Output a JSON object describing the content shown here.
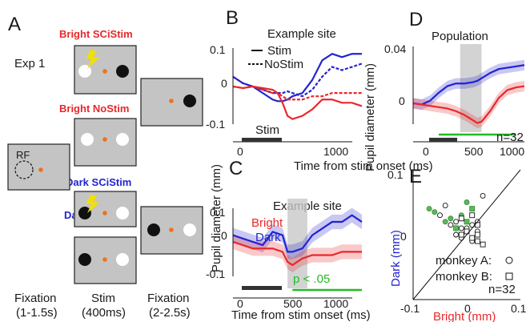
{
  "panel_a": {
    "letter": "A",
    "exp": "Exp 1",
    "rf": "RF",
    "conditions": [
      {
        "label": "Bright SCiStim",
        "color": "#e8282b"
      },
      {
        "label": "Bright NoStim",
        "color": "#e8282b"
      },
      {
        "label": "Dark SCiStim",
        "color": "#2323d0"
      },
      {
        "label": "Dark NoStim",
        "color": "#2323d0"
      }
    ],
    "phases": [
      {
        "line1": "Fixation",
        "line2": "(1-1.5s)"
      },
      {
        "line1": "Stim",
        "line2": "(400ms)"
      },
      {
        "line1": "Fixation",
        "line2": "(2-2.5s)"
      }
    ]
  },
  "panel_b": {
    "letter": "B",
    "title": "Example site",
    "legend": [
      "Stim",
      "NoStim"
    ],
    "bar_label": "Stim",
    "yticks": [
      "0.1",
      "0",
      "-0.1"
    ],
    "xticks": [
      "0",
      "1000"
    ]
  },
  "panel_c": {
    "letter": "C",
    "title": "Example site",
    "legend": [
      "Bright",
      "Dark"
    ],
    "sig_label": "p < .05",
    "yticks": [
      "0.1",
      "0",
      "-0.1"
    ],
    "xticks": [
      "0",
      "500",
      "1000"
    ]
  },
  "panel_d": {
    "letter": "D",
    "title": "Population",
    "n_label": "n=32",
    "yticks": [
      "0.04",
      "0"
    ],
    "xticks": [
      "0",
      "500",
      "1000"
    ]
  },
  "panel_e": {
    "letter": "E",
    "xlabel": "Bright (mm)",
    "ylabel": "Dark (mm)",
    "legend_a": "monkey A:",
    "legend_b": "monkey B:",
    "n_label": "n=32",
    "ytick_top": "0.1",
    "ytick_mid": "0",
    "xtick_left": "-0.1",
    "xtick_mid": "0",
    "xtick_right": "0.1"
  },
  "axes": {
    "pupil_ylabel": "Pupil diameter (mm)",
    "time_xlabel": "Time from stim onset (ms)"
  },
  "colors": {
    "bright": "#e8282b",
    "dark": "#2323d0",
    "sig": "#22bb22",
    "screen": "#c4c4c4",
    "fix": "#f07020"
  },
  "chart_data": [
    {
      "type": "line",
      "panel": "B",
      "title": "Example site",
      "xlabel": "Time from stim onset (ms)",
      "ylabel": "Pupil diameter (mm)",
      "xlim": [
        -200,
        1100
      ],
      "ylim": [
        -0.14,
        0.13
      ],
      "x": [
        -200,
        -100,
        0,
        100,
        200,
        250,
        300,
        350,
        400,
        500,
        600,
        700,
        800,
        900,
        1000,
        1100
      ],
      "series": [
        {
          "name": "Stim",
          "color": "#2323d0",
          "style": "solid",
          "values": [
            0.03,
            0.01,
            0.0,
            -0.02,
            -0.04,
            -0.045,
            -0.045,
            -0.04,
            -0.03,
            -0.02,
            0.02,
            0.08,
            0.1,
            0.09,
            0.1,
            0.1
          ]
        },
        {
          "name": "NoStim",
          "color": "#2323d0",
          "style": "dashed",
          "values": [
            0.03,
            0.01,
            0.0,
            -0.01,
            -0.02,
            -0.02,
            -0.02,
            -0.015,
            -0.02,
            -0.03,
            -0.01,
            0.03,
            0.06,
            0.05,
            0.06,
            0.07
          ]
        },
        {
          "name": "Stim",
          "color": "#e8282b",
          "style": "solid",
          "values": [
            0.0,
            -0.005,
            0.0,
            -0.005,
            -0.01,
            -0.02,
            -0.05,
            -0.09,
            -0.1,
            -0.09,
            -0.07,
            -0.04,
            -0.04,
            -0.05,
            -0.05,
            -0.06
          ]
        },
        {
          "name": "NoStim",
          "color": "#e8282b",
          "style": "dashed",
          "values": [
            0.0,
            -0.005,
            0.0,
            -0.01,
            -0.02,
            -0.02,
            -0.03,
            -0.04,
            -0.04,
            -0.04,
            -0.03,
            -0.03,
            -0.02,
            -0.02,
            -0.02,
            -0.02
          ]
        }
      ]
    },
    {
      "type": "line",
      "panel": "C",
      "title": "Example site",
      "xlabel": "Time from stim onset (ms)",
      "ylabel": "Pupil diameter (mm)",
      "xlim": [
        -200,
        1100
      ],
      "ylim": [
        -0.14,
        0.13
      ],
      "x": [
        -200,
        -100,
        0,
        100,
        200,
        300,
        350,
        400,
        500,
        600,
        700,
        800,
        900,
        1000,
        1100
      ],
      "shade": [
        350,
        550
      ],
      "sig": [
        400,
        1100
      ],
      "series": [
        {
          "name": "Dark",
          "color": "#2323d0",
          "band": 0.022,
          "values": [
            0.02,
            0.01,
            0.0,
            -0.01,
            0.03,
            0.02,
            -0.03,
            -0.03,
            -0.02,
            0.02,
            0.04,
            0.06,
            0.06,
            0.08,
            0.06
          ]
        },
        {
          "name": "Bright",
          "color": "#e8282b",
          "band": 0.022,
          "values": [
            0.0,
            -0.01,
            -0.02,
            -0.02,
            -0.02,
            -0.03,
            -0.06,
            -0.07,
            -0.05,
            -0.04,
            -0.04,
            -0.04,
            -0.03,
            -0.03,
            -0.03
          ]
        }
      ]
    },
    {
      "type": "line",
      "panel": "D",
      "title": "Population",
      "xlabel": "Time from stim onset (ms)",
      "ylabel": "Pupil diameter (mm)",
      "xlim": [
        -200,
        1100
      ],
      "ylim": [
        -0.022,
        0.045
      ],
      "x": [
        -200,
        -100,
        0,
        100,
        200,
        300,
        400,
        500,
        550,
        600,
        700,
        800,
        900,
        1000,
        1100
      ],
      "shade": [
        350,
        600
      ],
      "sig": [
        100,
        1000
      ],
      "series": [
        {
          "name": "Dark",
          "color": "#2323d0",
          "band": 0.004,
          "values": [
            0.0,
            -0.001,
            0.002,
            0.008,
            0.013,
            0.015,
            0.015,
            0.016,
            0.017,
            0.019,
            0.023,
            0.026,
            0.027,
            0.028,
            0.029
          ]
        },
        {
          "name": "Bright",
          "color": "#e8282b",
          "band": 0.004,
          "values": [
            0.0,
            -0.001,
            -0.002,
            -0.003,
            -0.004,
            -0.006,
            -0.009,
            -0.013,
            -0.015,
            -0.014,
            -0.006,
            0.004,
            0.01,
            0.012,
            0.013
          ]
        }
      ]
    },
    {
      "type": "scatter",
      "panel": "E",
      "xlabel": "Bright (mm)",
      "ylabel": "Dark (mm)",
      "xlim": [
        -0.1,
        0.1
      ],
      "ylim": [
        -0.1,
        0.1
      ],
      "series": [
        {
          "name": "monkey A",
          "marker": "circle",
          "x": [
            -0.07,
            -0.06,
            -0.05,
            -0.04,
            -0.03,
            -0.02,
            -0.01,
            0.0,
            0.01,
            0.03,
            -0.04,
            -0.02,
            0.0,
            0.01,
            -0.01,
            0.02,
            0.0,
            -0.03,
            -0.01,
            0.02
          ],
          "y": [
            0.04,
            0.035,
            0.03,
            0.045,
            0.025,
            0.02,
            0.01,
            0.005,
            0.015,
            0.06,
            0.02,
            0.0,
            0.01,
            -0.01,
            0.03,
            0.005,
            0.05,
            0.015,
            -0.005,
            0.02
          ],
          "significant": [
            1,
            1,
            0,
            0,
            1,
            0,
            0,
            0,
            0,
            0,
            1,
            0,
            0,
            0,
            1,
            0,
            1,
            0,
            0,
            0
          ]
        },
        {
          "name": "monkey B",
          "marker": "square",
          "x": [
            -0.01,
            0.0,
            0.01,
            0.02,
            -0.02,
            0.0,
            0.01,
            0.03,
            0.02,
            -0.01,
            0.01,
            0.02
          ],
          "y": [
            0.0,
            0.005,
            -0.005,
            -0.01,
            0.01,
            0.02,
            0.03,
            -0.015,
            0.015,
            0.025,
            0.04,
            0.0
          ],
          "significant": [
            0,
            0,
            0,
            0,
            1,
            1,
            0,
            0,
            0,
            0,
            1,
            0
          ]
        }
      ]
    }
  ]
}
